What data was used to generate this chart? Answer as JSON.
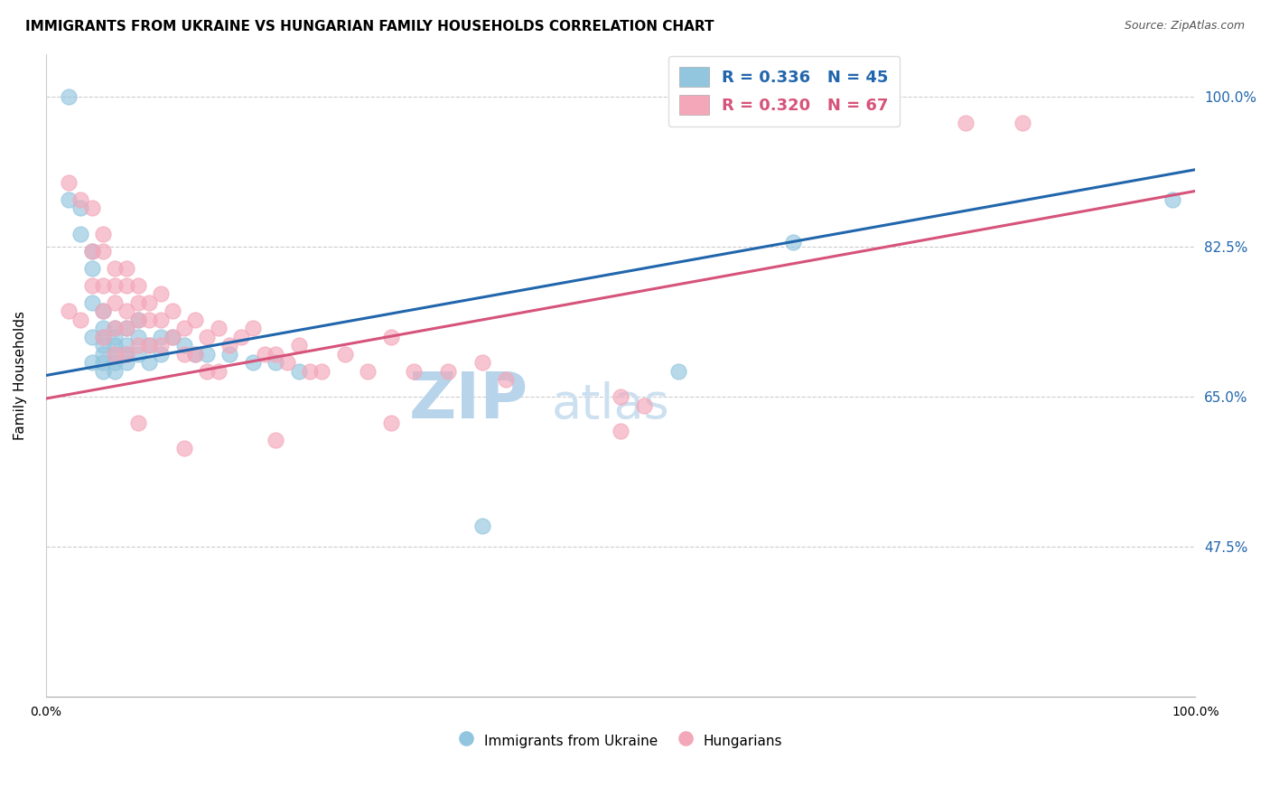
{
  "title": "IMMIGRANTS FROM UKRAINE VS HUNGARIAN FAMILY HOUSEHOLDS CORRELATION CHART",
  "source": "Source: ZipAtlas.com",
  "ylabel": "Family Households",
  "ytick_values": [
    0.475,
    0.65,
    0.825,
    1.0
  ],
  "xlim": [
    0.0,
    1.0
  ],
  "ylim": [
    0.3,
    1.05
  ],
  "legend_blue_label": "R = 0.336   N = 45",
  "legend_pink_label": "R = 0.320   N = 67",
  "scatter_blue_label": "Immigrants from Ukraine",
  "scatter_pink_label": "Hungarians",
  "blue_color": "#92c5de",
  "pink_color": "#f4a7b9",
  "line_blue_color": "#2166ac",
  "line_pink_color": "#d6537a",
  "blue_x": [
    0.02,
    0.02,
    0.03,
    0.03,
    0.04,
    0.04,
    0.04,
    0.04,
    0.04,
    0.05,
    0.05,
    0.05,
    0.05,
    0.05,
    0.05,
    0.05,
    0.06,
    0.06,
    0.06,
    0.06,
    0.06,
    0.06,
    0.07,
    0.07,
    0.07,
    0.07,
    0.08,
    0.08,
    0.08,
    0.09,
    0.09,
    0.1,
    0.1,
    0.11,
    0.12,
    0.13,
    0.14,
    0.16,
    0.18,
    0.2,
    0.22,
    0.38,
    0.55,
    0.65,
    0.98
  ],
  "blue_y": [
    1.0,
    0.88,
    0.87,
    0.84,
    0.82,
    0.8,
    0.76,
    0.72,
    0.69,
    0.75,
    0.73,
    0.72,
    0.71,
    0.7,
    0.69,
    0.68,
    0.73,
    0.72,
    0.71,
    0.7,
    0.69,
    0.68,
    0.73,
    0.71,
    0.7,
    0.69,
    0.74,
    0.72,
    0.7,
    0.71,
    0.69,
    0.72,
    0.7,
    0.72,
    0.71,
    0.7,
    0.7,
    0.7,
    0.69,
    0.69,
    0.68,
    0.5,
    0.68,
    0.83,
    0.88
  ],
  "pink_x": [
    0.02,
    0.02,
    0.03,
    0.03,
    0.04,
    0.04,
    0.04,
    0.05,
    0.05,
    0.05,
    0.05,
    0.05,
    0.06,
    0.06,
    0.06,
    0.06,
    0.06,
    0.07,
    0.07,
    0.07,
    0.07,
    0.07,
    0.08,
    0.08,
    0.08,
    0.08,
    0.09,
    0.09,
    0.09,
    0.1,
    0.1,
    0.1,
    0.11,
    0.11,
    0.12,
    0.12,
    0.13,
    0.13,
    0.14,
    0.14,
    0.15,
    0.15,
    0.16,
    0.17,
    0.18,
    0.19,
    0.2,
    0.21,
    0.22,
    0.23,
    0.24,
    0.26,
    0.28,
    0.3,
    0.32,
    0.35,
    0.4,
    0.38,
    0.5,
    0.52,
    0.08,
    0.12,
    0.2,
    0.3,
    0.5,
    0.8,
    0.85
  ],
  "pink_y": [
    0.9,
    0.75,
    0.88,
    0.74,
    0.87,
    0.82,
    0.78,
    0.84,
    0.82,
    0.78,
    0.75,
    0.72,
    0.8,
    0.78,
    0.76,
    0.73,
    0.7,
    0.8,
    0.78,
    0.75,
    0.73,
    0.7,
    0.78,
    0.76,
    0.74,
    0.71,
    0.76,
    0.74,
    0.71,
    0.77,
    0.74,
    0.71,
    0.75,
    0.72,
    0.73,
    0.7,
    0.74,
    0.7,
    0.72,
    0.68,
    0.73,
    0.68,
    0.71,
    0.72,
    0.73,
    0.7,
    0.7,
    0.69,
    0.71,
    0.68,
    0.68,
    0.7,
    0.68,
    0.72,
    0.68,
    0.68,
    0.67,
    0.69,
    0.65,
    0.64,
    0.62,
    0.59,
    0.6,
    0.62,
    0.61,
    0.97,
    0.97
  ],
  "background_color": "#ffffff",
  "grid_color": "#cccccc",
  "title_fontsize": 11,
  "axis_label_fontsize": 11,
  "tick_fontsize": 10,
  "legend_fontsize": 13,
  "source_fontsize": 9,
  "watermark_zip_color": "#c8dff0",
  "watermark_atlas_color": "#c8dff0",
  "watermark_fontsize": 52
}
